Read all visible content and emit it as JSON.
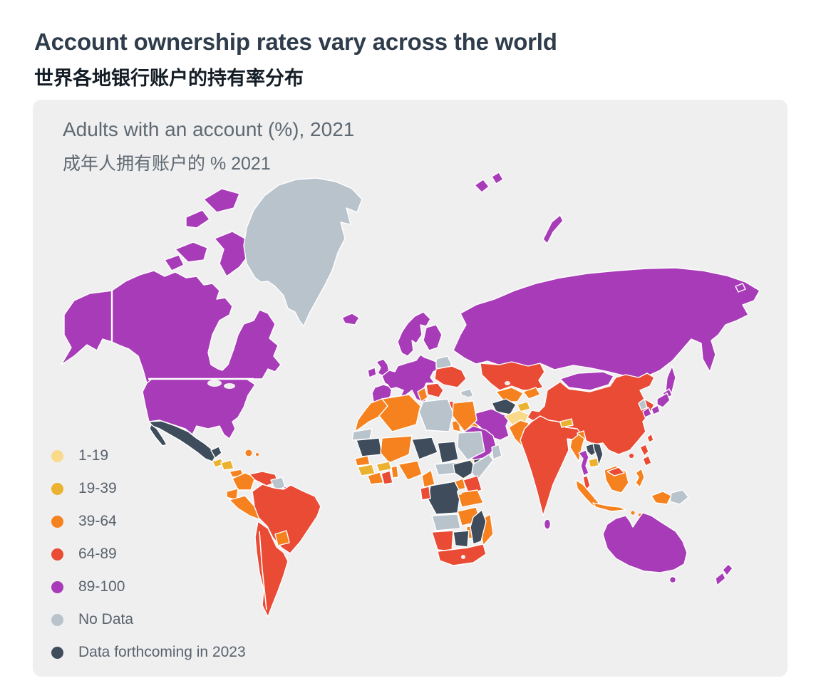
{
  "page": {
    "title": "Account ownership rates vary across the world",
    "subtitle_zh": "世界各地银行账户的持有率分布"
  },
  "panel": {
    "heading": "Adults with an account (%), 2021",
    "heading_zh": "成年人拥有账户的 % 2021",
    "background": "#f0eff0"
  },
  "legend": {
    "items": [
      {
        "label": "1-19",
        "color": "#f8da8a"
      },
      {
        "label": "19-39",
        "color": "#eab22e"
      },
      {
        "label": "39-64",
        "color": "#f5821f"
      },
      {
        "label": "64-89",
        "color": "#e94b35"
      },
      {
        "label": "89-100",
        "color": "#a83cb8"
      },
      {
        "label": "No Data",
        "color": "#b9c3cc"
      },
      {
        "label": "Data forthcoming in 2023",
        "color": "#3e4c5c"
      }
    ]
  },
  "chart_data": {
    "type": "choropleth_world_map",
    "title": "Adults with an account (%), 2021",
    "title_zh": "成年人拥有账户的 % 2021",
    "metric": "Adults with an account (%)",
    "year": "2021",
    "bins": [
      "1-19",
      "19-39",
      "39-64",
      "64-89",
      "89-100",
      "No Data",
      "Data forthcoming in 2023"
    ],
    "palette": {
      "1-19": "#f8da8a",
      "19-39": "#eab22e",
      "39-64": "#f5821f",
      "64-89": "#e94b35",
      "89-100": "#a83cb8",
      "No Data": "#b9c3cc",
      "Data forthcoming in 2023": "#3e4c5c"
    },
    "regions": {
      "alaska": "89-100",
      "canada": "89-100",
      "canada-arctic": "89-100",
      "usa": "89-100",
      "greenland": "No Data",
      "iceland": "89-100",
      "svalbard": "89-100",
      "novaya-zemlya": "89-100",
      "mexico": "Data forthcoming in 2023",
      "guatemala": "19-39",
      "honduras-nicaragua": "19-39",
      "costa-rica-panama": "39-64",
      "dominican-republic": "39-64",
      "puerto-rico": "39-64",
      "trinidad": "89-100",
      "colombia": "39-64",
      "venezuela": "64-89",
      "guyana-suriname": "No Data",
      "french-guiana": "89-100",
      "ecuador": "39-64",
      "peru": "39-64",
      "brazil": "64-89",
      "paraguay": "39-64",
      "argentina-chile": "64-89",
      "uk": "89-100",
      "ireland": "89-100",
      "europe-mainland": "89-100",
      "scandinavia": "89-100",
      "finland": "89-100",
      "belarus": "No Data",
      "ukraine": "64-89",
      "balkans-east": "64-89",
      "russia": "89-100",
      "kazakhstan": "64-89",
      "uzbekistan": "39-64",
      "turkmenistan": "Data forthcoming in 2023",
      "kyrgyzstan": "39-64",
      "tajikistan": "19-39",
      "afghanistan": "1-19",
      "pakistan": "39-64",
      "india": "64-89",
      "nepal": "19-39",
      "bangladesh": "39-64",
      "sri-lanka": "89-100",
      "china": "64-89",
      "mongolia": "89-100",
      "north-korea": "No Data",
      "south-korea": "89-100",
      "japan": "89-100",
      "sakhalin": "89-100",
      "wrangel": "89-100",
      "taiwan": "64-89",
      "hainan": "64-89",
      "myanmar": "39-64",
      "thailand": "89-100",
      "laos": "Data forthcoming in 2023",
      "vietnam": "Data forthcoming in 2023",
      "cambodia": "19-39",
      "malaysia": "64-89",
      "malaysia-borneo": "64-89",
      "sumatra": "39-64",
      "java": "39-64",
      "borneo": "39-64",
      "sulawesi": "39-64",
      "lesser-sunda": "39-64",
      "west-papua": "39-64",
      "papua-new-guinea": "No Data",
      "philippines": "64-89",
      "australia": "89-100",
      "tasmania": "89-100",
      "new-zealand": "89-100",
      "turkey": "64-89",
      "syria": "No Data",
      "iraq": "39-64",
      "jordan": "39-64",
      "caucasus": "No Data",
      "iran": "89-100",
      "saudi-arabia": "89-100",
      "yemen": "Data forthcoming in 2023",
      "oman": "No Data",
      "morocco": "39-64",
      "western-sahara": "No Data",
      "algeria": "39-64",
      "tunisia": "39-64",
      "libya": "No Data",
      "egypt": "39-64",
      "mauritania": "Data forthcoming in 2023",
      "mali": "39-64",
      "niger": "Data forthcoming in 2023",
      "chad": "Data forthcoming in 2023",
      "sudan": "No Data",
      "senegal": "39-64",
      "guinea": "19-39",
      "burkina-faso": "19-39",
      "ivory-coast": "39-64",
      "ghana": "64-89",
      "benin-togo": "39-64",
      "nigeria": "39-64",
      "cameroon": "39-64",
      "central-african-republic": "No Data",
      "south-sudan": "1-19",
      "ethiopia": "Data forthcoming in 2023",
      "somalia": "No Data",
      "uganda": "39-64",
      "kenya": "64-89",
      "drc": "Data forthcoming in 2023",
      "gabon": "64-89",
      "tanzania": "39-64",
      "angola": "No Data",
      "zambia": "39-64",
      "zimbabwe": "39-64",
      "mozambique": "39-64",
      "namibia": "64-89",
      "botswana": "Data forthcoming in 2023",
      "south-africa": "64-89",
      "madagascar": "Data forthcoming in 2023"
    }
  }
}
